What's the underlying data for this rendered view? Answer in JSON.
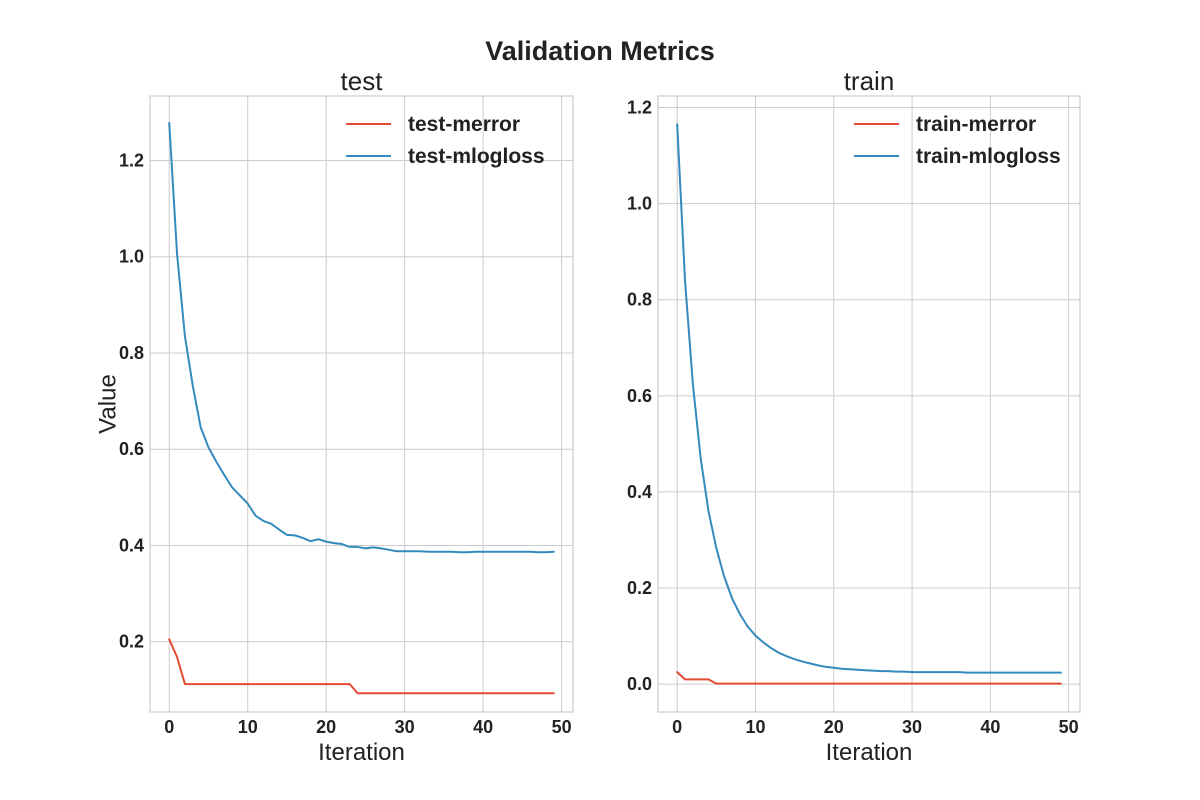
{
  "figure": {
    "suptitle": "Validation Metrics",
    "colors": {
      "merror": "#e24a33",
      "mlogloss": "#348abd"
    }
  },
  "chart_data": [
    {
      "type": "line",
      "title": "test",
      "xlabel": "Iteration",
      "ylabel": "Value",
      "xlim": [
        -2.45,
        51.45
      ],
      "ylim": [
        0.054,
        1.334
      ],
      "xticks": [
        0,
        10,
        20,
        30,
        40,
        50
      ],
      "yticks": [
        0.2,
        0.4,
        0.6,
        0.8,
        1.0,
        1.2
      ],
      "grid": true,
      "legend": "top-right",
      "x": [
        0,
        1,
        2,
        3,
        4,
        5,
        6,
        7,
        8,
        9,
        10,
        11,
        12,
        13,
        14,
        15,
        16,
        17,
        18,
        19,
        20,
        21,
        22,
        23,
        24,
        25,
        26,
        27,
        28,
        29,
        30,
        31,
        32,
        33,
        34,
        35,
        36,
        37,
        38,
        39,
        40,
        41,
        42,
        43,
        44,
        45,
        46,
        47,
        48,
        49
      ],
      "series": [
        {
          "name": "test-merror",
          "color": "#e24a33",
          "values": [
            0.205,
            0.168,
            0.112,
            0.112,
            0.112,
            0.112,
            0.112,
            0.112,
            0.112,
            0.112,
            0.112,
            0.112,
            0.112,
            0.112,
            0.112,
            0.112,
            0.112,
            0.112,
            0.112,
            0.112,
            0.112,
            0.112,
            0.112,
            0.112,
            0.093,
            0.093,
            0.093,
            0.093,
            0.093,
            0.093,
            0.093,
            0.093,
            0.093,
            0.093,
            0.093,
            0.093,
            0.093,
            0.093,
            0.093,
            0.093,
            0.093,
            0.093,
            0.093,
            0.093,
            0.093,
            0.093,
            0.093,
            0.093,
            0.093,
            0.093
          ]
        },
        {
          "name": "test-mlogloss",
          "color": "#348abd",
          "values": [
            1.278,
            1.005,
            0.835,
            0.732,
            0.646,
            0.604,
            0.574,
            0.547,
            0.521,
            0.504,
            0.487,
            0.462,
            0.451,
            0.445,
            0.433,
            0.422,
            0.421,
            0.416,
            0.409,
            0.413,
            0.408,
            0.405,
            0.403,
            0.397,
            0.397,
            0.394,
            0.396,
            0.394,
            0.391,
            0.388,
            0.388,
            0.388,
            0.388,
            0.387,
            0.387,
            0.387,
            0.387,
            0.386,
            0.386,
            0.387,
            0.387,
            0.387,
            0.387,
            0.387,
            0.387,
            0.387,
            0.387,
            0.386,
            0.386,
            0.387
          ]
        }
      ]
    },
    {
      "type": "line",
      "title": "train",
      "xlabel": "Iteration",
      "ylabel": "",
      "xlim": [
        -2.45,
        51.45
      ],
      "ylim": [
        -0.058,
        1.224
      ],
      "xticks": [
        0,
        10,
        20,
        30,
        40,
        50
      ],
      "yticks": [
        0.0,
        0.2,
        0.4,
        0.6,
        0.8,
        1.0,
        1.2
      ],
      "grid": true,
      "legend": "top-right",
      "x": [
        0,
        1,
        2,
        3,
        4,
        5,
        6,
        7,
        8,
        9,
        10,
        11,
        12,
        13,
        14,
        15,
        16,
        17,
        18,
        19,
        20,
        21,
        22,
        23,
        24,
        25,
        26,
        27,
        28,
        29,
        30,
        31,
        32,
        33,
        34,
        35,
        36,
        37,
        38,
        39,
        40,
        41,
        42,
        43,
        44,
        45,
        46,
        47,
        48,
        49
      ],
      "series": [
        {
          "name": "train-merror",
          "color": "#e24a33",
          "values": [
            0.025,
            0.01,
            0.01,
            0.01,
            0.01,
            0.001,
            0.001,
            0.001,
            0.001,
            0.001,
            0.001,
            0.001,
            0.001,
            0.001,
            0.001,
            0.001,
            0.001,
            0.001,
            0.001,
            0.001,
            0.001,
            0.001,
            0.001,
            0.001,
            0.001,
            0.001,
            0.001,
            0.001,
            0.001,
            0.001,
            0.001,
            0.001,
            0.001,
            0.001,
            0.001,
            0.001,
            0.001,
            0.001,
            0.001,
            0.001,
            0.001,
            0.001,
            0.001,
            0.001,
            0.001,
            0.001,
            0.001,
            0.001,
            0.001,
            0.001
          ]
        },
        {
          "name": "train-mlogloss",
          "color": "#348abd",
          "values": [
            1.165,
            0.84,
            0.625,
            0.47,
            0.36,
            0.283,
            0.224,
            0.179,
            0.146,
            0.12,
            0.101,
            0.087,
            0.075,
            0.065,
            0.058,
            0.052,
            0.047,
            0.043,
            0.039,
            0.036,
            0.034,
            0.032,
            0.031,
            0.03,
            0.029,
            0.028,
            0.027,
            0.027,
            0.026,
            0.026,
            0.025,
            0.025,
            0.025,
            0.025,
            0.025,
            0.025,
            0.025,
            0.024,
            0.024,
            0.024,
            0.024,
            0.024,
            0.024,
            0.024,
            0.024,
            0.024,
            0.024,
            0.024,
            0.024,
            0.024
          ]
        }
      ]
    }
  ]
}
